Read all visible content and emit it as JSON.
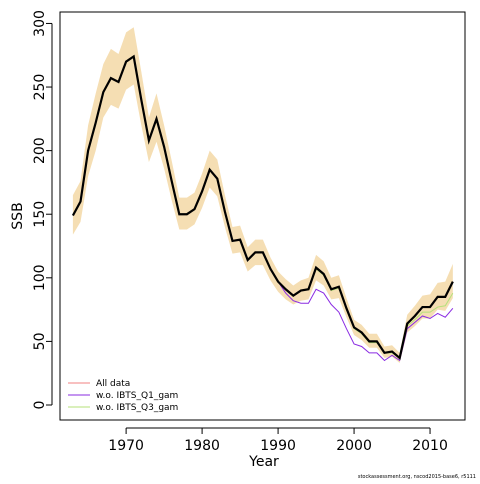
{
  "chart_data": {
    "type": "line",
    "x_label": "Year",
    "y_label": "SSB",
    "footnote": "stockassessment.org, nscod2015-base6, r5111",
    "x": [
      1963,
      1964,
      1965,
      1966,
      1967,
      1968,
      1969,
      1970,
      1971,
      1972,
      1973,
      1974,
      1975,
      1976,
      1977,
      1978,
      1979,
      1980,
      1981,
      1982,
      1983,
      1984,
      1985,
      1986,
      1987,
      1988,
      1989,
      1990,
      1991,
      1992,
      1993,
      1994,
      1995,
      1996,
      1997,
      1998,
      1999,
      2000,
      2001,
      2002,
      2003,
      2004,
      2005,
      2006,
      2007,
      2008,
      2009,
      2010,
      2011,
      2012,
      2013
    ],
    "values": [
      149,
      160,
      200,
      222,
      246,
      257,
      254,
      270,
      274,
      240,
      208,
      225,
      203,
      176,
      150,
      150,
      154,
      168,
      185,
      178,
      152,
      129,
      130,
      114,
      120,
      120,
      107,
      97,
      91,
      86,
      90,
      91,
      108,
      103,
      91,
      93,
      76,
      61,
      57,
      50,
      50,
      41,
      42,
      37,
      64,
      70,
      77,
      77,
      85,
      85,
      97
    ],
    "color": "#000000",
    "band_low": [
      134,
      144,
      180,
      200,
      226,
      236,
      233,
      248,
      252,
      220,
      191,
      207,
      186,
      161,
      138,
      138,
      142,
      155,
      171,
      164,
      140,
      119,
      120,
      105,
      110,
      110,
      98,
      89,
      83,
      79,
      82,
      83,
      98,
      94,
      83,
      84,
      69,
      55,
      51,
      45,
      45,
      37,
      38,
      33,
      57,
      62,
      68,
      68,
      75,
      74,
      84
    ],
    "band_high": [
      165,
      176,
      220,
      245,
      268,
      280,
      276,
      293,
      297,
      262,
      226,
      245,
      220,
      192,
      163,
      163,
      167,
      182,
      200,
      193,
      165,
      140,
      141,
      124,
      130,
      130,
      116,
      105,
      99,
      94,
      98,
      100,
      118,
      113,
      100,
      102,
      84,
      67,
      63,
      56,
      56,
      46,
      47,
      41,
      71,
      78,
      86,
      87,
      96,
      97,
      111
    ],
    "band_color": "#f5deb3",
    "series": [
      {
        "name": "All data",
        "color": "#f08080",
        "values": [
          149,
          160,
          200,
          222,
          246,
          257,
          254,
          270,
          274,
          240,
          208,
          225,
          203,
          176,
          150,
          150,
          154,
          168,
          185,
          178,
          152,
          129,
          130,
          114,
          120,
          120,
          107,
          97,
          91,
          86,
          90,
          91,
          108,
          103,
          91,
          93,
          76,
          61,
          57,
          50,
          50,
          41,
          42,
          37,
          64,
          70,
          77,
          77,
          85,
          85,
          97
        ]
      },
      {
        "name": "w.o. IBTS_Q1_gam",
        "color": "#8a2be2",
        "values": [
          149,
          160,
          200,
          222,
          246,
          257,
          254,
          270,
          274,
          240,
          208,
          225,
          203,
          176,
          150,
          150,
          154,
          168,
          185,
          178,
          152,
          129,
          130,
          114,
          120,
          120,
          107,
          97,
          88,
          82,
          80,
          80,
          91,
          88,
          79,
          73,
          60,
          48,
          46,
          41,
          41,
          35,
          39,
          35,
          60,
          65,
          70,
          68,
          72,
          69,
          76
        ]
      },
      {
        "name": "w.o. IBTS_Q3_gam",
        "color": "#b5e17a",
        "values": [
          149,
          160,
          200,
          222,
          246,
          257,
          254,
          270,
          274,
          240,
          208,
          225,
          203,
          176,
          150,
          150,
          154,
          168,
          185,
          178,
          152,
          129,
          130,
          114,
          120,
          120,
          107,
          97,
          91,
          86,
          90,
          91,
          107,
          102,
          90,
          92,
          75,
          60,
          56,
          49,
          49,
          41,
          41,
          37,
          62,
          67,
          73,
          73,
          77,
          78,
          88
        ]
      }
    ],
    "xlim": [
      1961.3,
      2014.6
    ],
    "ylim": [
      -11.8,
      309
    ],
    "xticks": [
      1970,
      1980,
      1990,
      2000,
      2010
    ],
    "yticks": [
      0,
      50,
      100,
      150,
      200,
      250,
      300
    ],
    "legend": "bottom-left"
  }
}
